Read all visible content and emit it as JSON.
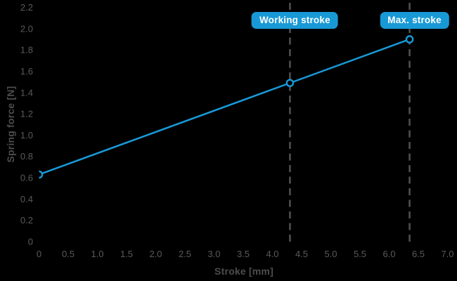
{
  "page": {
    "background": "#000000"
  },
  "chart_data": {
    "type": "line",
    "title": "",
    "xlabel": "Stroke [mm]",
    "ylabel": "Spring force [N]",
    "xlim": [
      0,
      7.0
    ],
    "ylim": [
      0,
      2.2
    ],
    "grid": false,
    "legend": false,
    "background": "#000000",
    "axis_text_color": "#5a5a5a",
    "axis_title_color": "#4d4d4d",
    "x_ticks": [
      0,
      0.5,
      1.0,
      1.5,
      2.0,
      2.5,
      3.0,
      3.5,
      4.0,
      4.5,
      5.0,
      5.5,
      6.0,
      6.5,
      7.0
    ],
    "x_tick_labels": [
      "0",
      "0.5",
      "1.0",
      "1.5",
      "2.0",
      "2.5",
      "3.0",
      "3.5",
      "4.0",
      "4.5",
      "5.0",
      "5.5",
      "6.0",
      "6.5",
      "7.0"
    ],
    "y_ticks": [
      0,
      0.2,
      0.4,
      0.6,
      0.8,
      1.0,
      1.2,
      1.4,
      1.6,
      1.8,
      2.0,
      2.2
    ],
    "y_tick_labels": [
      "0",
      "0.2",
      "0.4",
      "0.6",
      "0.8",
      "1.0",
      "1.2",
      "1.4",
      "1.6",
      "1.8",
      "2.0",
      "2.2"
    ],
    "series": [
      {
        "color": "#1899d6",
        "line_width": 2.5,
        "marker": "open-circle",
        "marker_fill": "#000000",
        "points": [
          [
            0,
            0.63
          ],
          [
            4.3,
            1.49
          ],
          [
            6.35,
            1.9
          ]
        ]
      }
    ],
    "annotations": [
      {
        "type": "vline",
        "x": 4.3,
        "label": "Working stroke",
        "line_color": "#4f4f4f",
        "badge_color": "#1899d6",
        "text_color": "#ffffff"
      },
      {
        "type": "vline",
        "x": 6.35,
        "label": "Max. stroke",
        "line_color": "#4f4f4f",
        "badge_color": "#1899d6",
        "text_color": "#ffffff"
      }
    ]
  }
}
